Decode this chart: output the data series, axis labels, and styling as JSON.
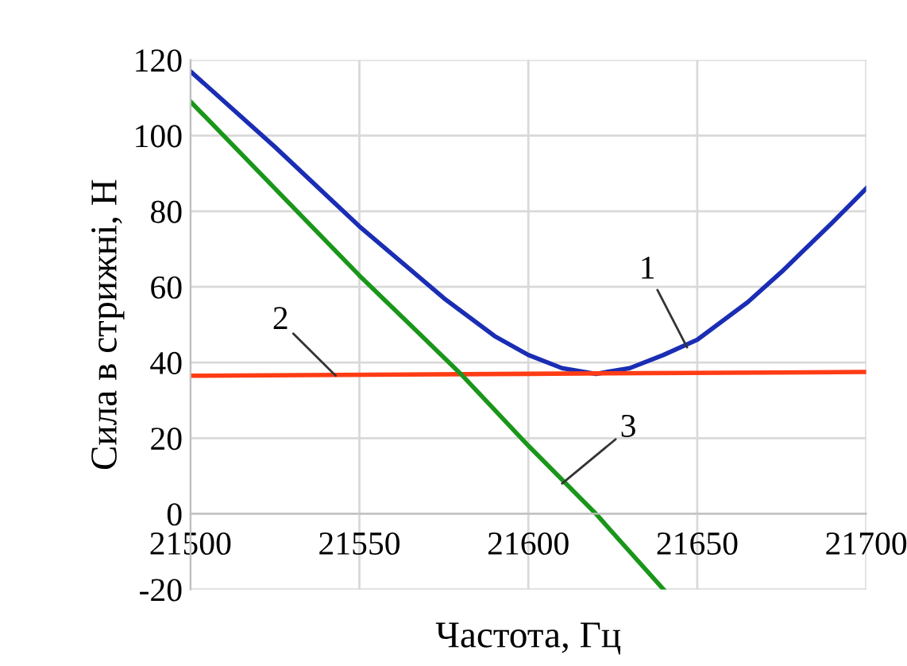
{
  "chart_data": {
    "type": "line",
    "xlabel": "Частота, Гц",
    "ylabel": "Сила в стрижні, Н",
    "xlim": [
      21500,
      21700
    ],
    "xticks": [
      21500,
      21550,
      21600,
      21650,
      21700
    ],
    "ylim": [
      -20,
      120
    ],
    "yticks": [
      -20,
      0,
      20,
      40,
      60,
      80,
      100,
      120
    ],
    "grid": true,
    "legend": false,
    "marker": "none",
    "line_style": "solid",
    "series": [
      {
        "color": "#1a2db4",
        "x": [
          21500,
          21525,
          21550,
          21575,
          21590,
          21600,
          21610,
          21620,
          21630,
          21640,
          21650,
          21665,
          21675,
          21690,
          21700
        ],
        "values": [
          117,
          97,
          76,
          57,
          47,
          42,
          38.5,
          37,
          38.5,
          42,
          46,
          56,
          64,
          77,
          86
        ]
      },
      {
        "color": "#ff3c14",
        "x": [
          21500,
          21600,
          21700
        ],
        "values": [
          36.5,
          37,
          37.5
        ]
      },
      {
        "color": "#1a961a",
        "x": [
          21500,
          21550,
          21580,
          21600,
          21620,
          21640
        ],
        "values": [
          109,
          63,
          37,
          18,
          0,
          -20
        ]
      }
    ],
    "annotations": [
      {
        "text": "1",
        "x": 21647,
        "y": 44
      },
      {
        "text": "2",
        "x": 21543,
        "y": 36.5
      },
      {
        "text": "3",
        "x": 21610,
        "y": 8
      }
    ]
  }
}
